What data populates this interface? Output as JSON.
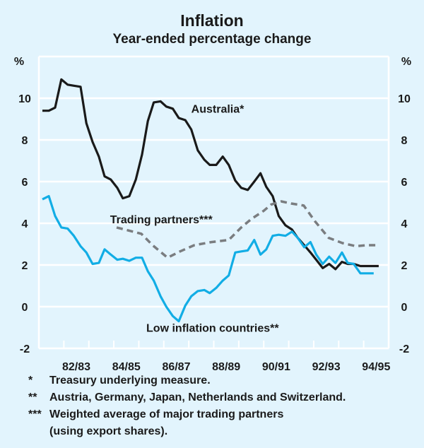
{
  "chart_data": {
    "type": "line",
    "title": "Inflation",
    "subtitle": "Year-ended percentage change",
    "ylabel_left": "%",
    "ylabel_right": "%",
    "xlabel": "",
    "ylim": [
      -2,
      12
    ],
    "yticks": [
      -2,
      0,
      2,
      4,
      6,
      8,
      10
    ],
    "x_range_fiscal_years": [
      "81/82",
      "94/95"
    ],
    "xlim": [
      0,
      14
    ],
    "xticks_labels": [
      {
        "pos": 1.5,
        "label": "82/83"
      },
      {
        "pos": 3.5,
        "label": "84/85"
      },
      {
        "pos": 5.5,
        "label": "86/87"
      },
      {
        "pos": 7.5,
        "label": "88/89"
      },
      {
        "pos": 9.5,
        "label": "90/91"
      },
      {
        "pos": 11.5,
        "label": "92/93"
      },
      {
        "pos": 13.5,
        "label": "94/95"
      }
    ],
    "grid": true,
    "series": [
      {
        "name": "Australia*",
        "color": "#1a1a1a",
        "style": "solid",
        "label_pos": {
          "x": 6.1,
          "y": 9.3
        },
        "x": [
          0.14,
          0.4,
          0.65,
          0.9,
          1.15,
          1.4,
          1.67,
          1.9,
          2.15,
          2.4,
          2.63,
          2.88,
          3.14,
          3.36,
          3.62,
          3.88,
          4.13,
          4.36,
          4.6,
          4.87,
          5.1,
          5.36,
          5.6,
          5.86,
          6.1,
          6.36,
          6.62,
          6.84,
          7.1,
          7.36,
          7.6,
          7.86,
          8.1,
          8.36,
          8.62,
          8.87,
          9.1,
          9.36,
          9.6,
          9.87,
          10.13,
          10.36,
          10.62,
          10.87,
          11.1,
          11.36,
          11.62,
          11.87,
          12.13,
          12.36,
          12.6,
          12.87,
          13.13,
          13.4,
          13.6
        ],
        "y": [
          9.4,
          9.4,
          9.55,
          10.9,
          10.65,
          10.6,
          10.55,
          8.8,
          7.9,
          7.2,
          6.25,
          6.1,
          5.7,
          5.2,
          5.3,
          6.1,
          7.3,
          8.9,
          9.8,
          9.85,
          9.6,
          9.5,
          9.05,
          8.95,
          8.5,
          7.5,
          7.05,
          6.8,
          6.8,
          7.2,
          6.8,
          6.05,
          5.7,
          5.6,
          6.0,
          6.4,
          5.75,
          5.3,
          4.35,
          3.9,
          3.7,
          3.3,
          2.95,
          2.6,
          2.25,
          1.85,
          2.05,
          1.8,
          2.15,
          2.05,
          2.05,
          1.95,
          1.95,
          1.95,
          1.95
        ]
      },
      {
        "name": "Trading partners***",
        "color": "#7a7d80",
        "style": "dashed",
        "label_pos": {
          "x": 2.85,
          "y": 4.0
        },
        "x": [
          3.11,
          3.6,
          4.1,
          4.55,
          5.15,
          5.65,
          6.22,
          6.9,
          7.6,
          8.1,
          8.5,
          9.0,
          9.3,
          9.7,
          10.1,
          10.6,
          11.05,
          11.6,
          12.15,
          12.7,
          13.1,
          13.6
        ],
        "y": [
          3.8,
          3.65,
          3.5,
          2.95,
          2.35,
          2.65,
          2.95,
          3.1,
          3.2,
          3.8,
          4.2,
          4.6,
          4.9,
          5.05,
          4.95,
          4.85,
          4.1,
          3.3,
          3.05,
          2.9,
          2.95,
          2.95
        ]
      },
      {
        "name": "Low inflation countries**",
        "color": "#12ade5",
        "style": "solid",
        "label_pos": {
          "x": 4.3,
          "y": -1.2
        },
        "x": [
          0.14,
          0.4,
          0.65,
          0.9,
          1.15,
          1.4,
          1.67,
          1.9,
          2.15,
          2.4,
          2.63,
          2.88,
          3.14,
          3.36,
          3.62,
          3.88,
          4.13,
          4.36,
          4.6,
          4.87,
          5.1,
          5.36,
          5.6,
          5.86,
          6.1,
          6.36,
          6.62,
          6.84,
          7.1,
          7.36,
          7.6,
          7.86,
          8.1,
          8.36,
          8.62,
          8.87,
          9.1,
          9.36,
          9.6,
          9.87,
          10.13,
          10.36,
          10.62,
          10.87,
          11.1,
          11.36,
          11.62,
          11.87,
          12.13,
          12.36,
          12.6,
          12.87,
          13.13,
          13.4
        ],
        "y": [
          5.15,
          5.3,
          4.35,
          3.8,
          3.75,
          3.4,
          2.9,
          2.6,
          2.05,
          2.1,
          2.75,
          2.5,
          2.25,
          2.3,
          2.2,
          2.35,
          2.35,
          1.7,
          1.25,
          0.5,
          0.0,
          -0.45,
          -0.7,
          0.05,
          0.5,
          0.75,
          0.8,
          0.65,
          0.9,
          1.25,
          1.5,
          2.6,
          2.65,
          2.7,
          3.2,
          2.5,
          2.75,
          3.4,
          3.45,
          3.4,
          3.6,
          3.3,
          2.85,
          3.1,
          2.5,
          2.05,
          2.4,
          2.1,
          2.6,
          2.1,
          2.05,
          1.6,
          1.6,
          1.6
        ]
      }
    ]
  },
  "footnotes": [
    {
      "mark": "*",
      "text": "Treasury underlying measure."
    },
    {
      "mark": "**",
      "text": "Austria, Germany, Japan, Netherlands and Switzerland."
    },
    {
      "mark": "***",
      "text": "Weighted average of major trading partners"
    },
    {
      "mark": "",
      "text": "(using export shares)."
    }
  ]
}
